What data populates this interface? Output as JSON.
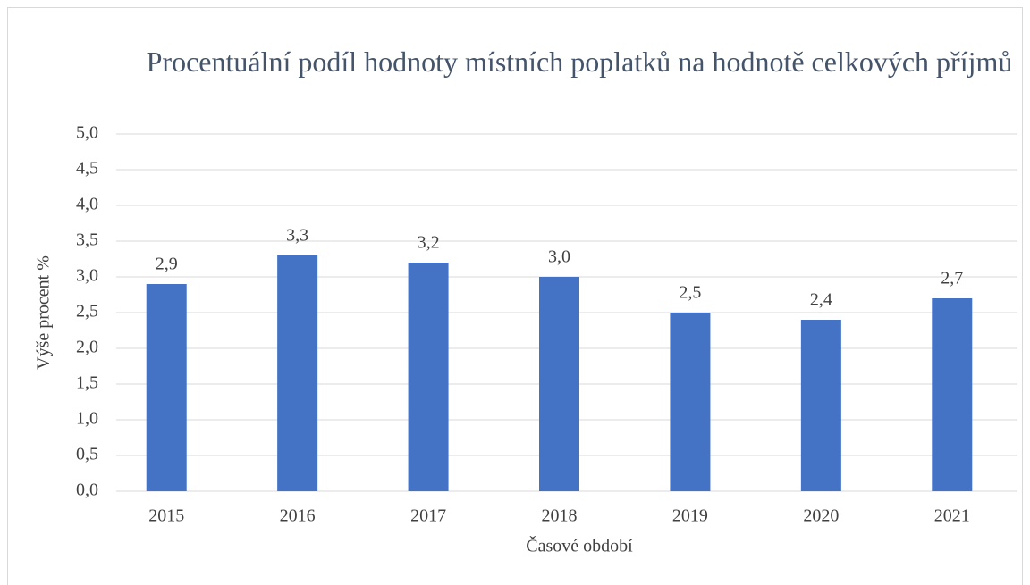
{
  "chart_data": {
    "type": "bar",
    "title": "Procentuální podíl hodnoty místních poplatků na hodnotě celkových příjmů",
    "x_label": "Časové období",
    "y_label": "Výše procent %",
    "categories": [
      "2015",
      "2016",
      "2017",
      "2018",
      "2019",
      "2020",
      "2021"
    ],
    "values": [
      2.9,
      3.3,
      3.2,
      3.0,
      2.5,
      2.4,
      2.7
    ],
    "value_labels": [
      "2,9",
      "3,3",
      "3,2",
      "3,0",
      "2,5",
      "2,4",
      "2,7"
    ],
    "color": "#4472c4",
    "ylim": [
      0,
      5
    ],
    "yticks": [
      {
        "value": 0,
        "label": "0,0"
      },
      {
        "value": 0.5,
        "label": "0,5"
      },
      {
        "value": 1,
        "label": "1,0"
      },
      {
        "value": 1.5,
        "label": "1,5"
      },
      {
        "value": 2,
        "label": "2,0"
      },
      {
        "value": 2.5,
        "label": "2,5"
      },
      {
        "value": 3,
        "label": "3,0"
      },
      {
        "value": 3.5,
        "label": "3,5"
      },
      {
        "value": 4,
        "label": "4,0"
      },
      {
        "value": 4.5,
        "label": "4,5"
      },
      {
        "value": 5,
        "label": "5,0"
      }
    ],
    "grid": true
  }
}
